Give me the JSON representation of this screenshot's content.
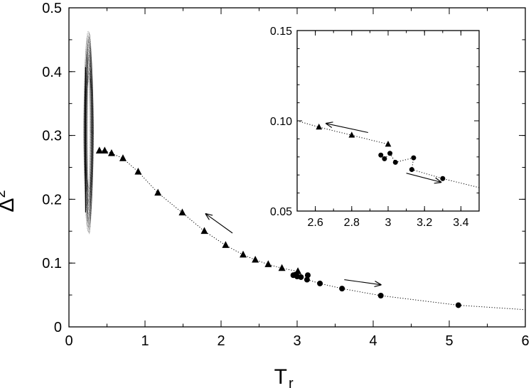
{
  "chart_data": [
    {
      "type": "scatter",
      "title": "",
      "xlabel": {
        "main": "T",
        "sub": "r"
      },
      "ylabel": {
        "main": "Δ",
        "sup": "2"
      },
      "xlim": [
        0,
        6
      ],
      "ylim": [
        0,
        0.5
      ],
      "xticks": [
        "0",
        "1",
        "2",
        "3",
        "4",
        "5",
        "6"
      ],
      "yticks": [
        "0",
        "0.1",
        "0.2",
        "0.3",
        "0.4",
        "0.5"
      ],
      "grid": false,
      "legend": "none",
      "series": [
        {
          "marker": "triangle",
          "line": "dotted",
          "color": "#000000",
          "points": [
            [
              0.4,
              0.276
            ],
            [
              0.47,
              0.276
            ],
            [
              0.56,
              0.272
            ],
            [
              0.71,
              0.264
            ],
            [
              0.91,
              0.243
            ],
            [
              1.17,
              0.21
            ],
            [
              1.49,
              0.179
            ],
            [
              1.78,
              0.15
            ],
            [
              2.06,
              0.128
            ],
            [
              2.29,
              0.113
            ],
            [
              2.45,
              0.105
            ],
            [
              2.62,
              0.098
            ],
            [
              2.8,
              0.092
            ],
            [
              3.01,
              0.087
            ]
          ]
        },
        {
          "marker": "circle",
          "line": "dotted",
          "color": "#000000",
          "points": [
            [
              2.95,
              0.081
            ],
            [
              2.98,
              0.082
            ],
            [
              3.0,
              0.079
            ],
            [
              3.05,
              0.078
            ],
            [
              3.14,
              0.081
            ],
            [
              3.13,
              0.074
            ],
            [
              3.3,
              0.068
            ],
            [
              3.59,
              0.06
            ],
            [
              4.1,
              0.049
            ],
            [
              5.12,
              0.034
            ]
          ],
          "trend_extends_to": [
            6.0,
            0.027
          ]
        },
        {
          "type": "closed-orbit",
          "description_free": true,
          "x_range": [
            0.2,
            0.32
          ],
          "y_range": [
            0.148,
            0.462
          ]
        }
      ],
      "arrows": [
        {
          "from": [
            2.15,
            0.147
          ],
          "to": [
            1.8,
            0.177
          ]
        },
        {
          "from": [
            3.62,
            0.074
          ],
          "to": [
            4.1,
            0.066
          ]
        }
      ]
    },
    {
      "type": "scatter",
      "title": "",
      "inset": true,
      "xlim": [
        2.5,
        3.5
      ],
      "ylim": [
        0.05,
        0.15
      ],
      "xticks": [
        "2.6",
        "2.8",
        "3",
        "3.2",
        "3.4"
      ],
      "yticks": [
        "0.05",
        "0.10",
        "0.15"
      ],
      "grid": false,
      "series": [
        {
          "marker": "triangle",
          "line": "dotted",
          "points": [
            [
              2.62,
              0.0965
            ],
            [
              2.8,
              0.092
            ],
            [
              3.0,
              0.087
            ]
          ],
          "trend_extends_to": [
            2.5,
            0.1
          ]
        },
        {
          "marker": "circle",
          "line": "dotted",
          "points": [
            [
              2.96,
              0.081
            ],
            [
              2.98,
              0.079
            ],
            [
              3.01,
              0.082
            ],
            [
              3.04,
              0.077
            ],
            [
              3.14,
              0.0795
            ],
            [
              3.13,
              0.073
            ],
            [
              3.3,
              0.068
            ]
          ],
          "trend_extends_to": [
            3.5,
            0.063
          ]
        }
      ],
      "arrows": [
        {
          "from": [
            2.89,
            0.0935
          ],
          "to": [
            2.66,
            0.0985
          ]
        },
        {
          "from": [
            3.1,
            0.071
          ],
          "to": [
            3.29,
            0.066
          ]
        }
      ]
    }
  ]
}
